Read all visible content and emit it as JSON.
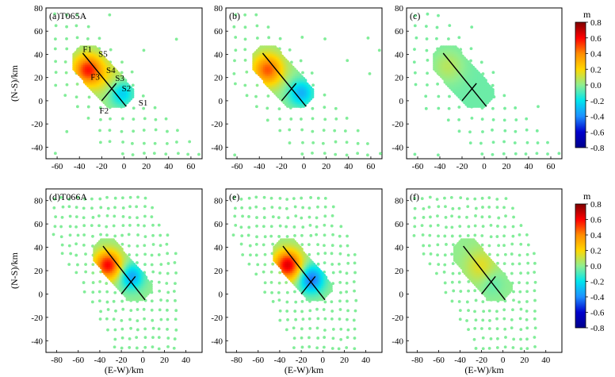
{
  "figure": {
    "ylabel": "(N-S)/km",
    "xlabel": "(E-W)/km",
    "colorbar_title": "m",
    "colorbar_ticks": [
      "0.8",
      "0.6",
      "0.4",
      "0.2",
      "0.0",
      "-0.2",
      "-0.4",
      "-0.6",
      "-0.8"
    ],
    "colorbar_stops": [
      "#7f0000",
      "#ff0000",
      "#ff8c00",
      "#ffd700",
      "#90ee90",
      "#00e5ee",
      "#1e90ff",
      "#0000cd",
      "#00008b"
    ]
  },
  "chart_data": [
    {
      "type": "scatter",
      "panel": "a",
      "label": "(a)T065A",
      "title": "",
      "xlabel": "",
      "ylabel": "(N-S)/km",
      "xlim": [
        -70,
        70
      ],
      "ylim": [
        -50,
        80
      ],
      "xticks": [
        -60,
        -40,
        -20,
        0,
        20,
        40,
        60
      ],
      "yticks": [
        -40,
        -20,
        0,
        20,
        40,
        60,
        80
      ],
      "annotations": [
        {
          "text": "F1",
          "x": -37,
          "y": 42
        },
        {
          "text": "S5",
          "x": -23,
          "y": 38
        },
        {
          "text": "S4",
          "x": -16,
          "y": 24
        },
        {
          "text": "F3",
          "x": -30,
          "y": 18
        },
        {
          "text": "S3",
          "x": -8,
          "y": 17
        },
        {
          "text": "S2",
          "x": -2,
          "y": 8
        },
        {
          "text": "F2",
          "x": -22,
          "y": -11
        },
        {
          "text": "S1",
          "x": 13,
          "y": -4
        }
      ]
    },
    {
      "type": "scatter",
      "panel": "b",
      "label": "(b)",
      "xlabel": "",
      "ylabel": "",
      "xlim": [
        -70,
        70
      ],
      "ylim": [
        -50,
        80
      ],
      "xticks": [
        -60,
        -40,
        -20,
        0,
        20,
        40,
        60
      ],
      "yticks": [
        -40,
        -20,
        0,
        20,
        40,
        60,
        80
      ]
    },
    {
      "type": "scatter",
      "panel": "c",
      "label": "(c)",
      "xlabel": "",
      "ylabel": "",
      "xlim": [
        -70,
        70
      ],
      "ylim": [
        -50,
        80
      ],
      "xticks": [
        -60,
        -40,
        -20,
        0,
        20,
        40,
        60
      ],
      "yticks": [
        -40,
        -20,
        0,
        20,
        40,
        60,
        80
      ]
    },
    {
      "type": "scatter",
      "panel": "d",
      "label": "(d)T066A",
      "xlabel": "(E-W)/km",
      "ylabel": "(N-S)/km",
      "xlim": [
        -90,
        55
      ],
      "ylim": [
        -50,
        90
      ],
      "xticks": [
        -80,
        -60,
        -40,
        -20,
        0,
        20,
        40
      ],
      "yticks": [
        -40,
        -20,
        0,
        20,
        40,
        60,
        80
      ]
    },
    {
      "type": "scatter",
      "panel": "e",
      "label": "(e)",
      "xlabel": "(E-W)/km",
      "ylabel": "",
      "xlim": [
        -90,
        55
      ],
      "ylim": [
        -50,
        90
      ],
      "xticks": [
        -80,
        -60,
        -40,
        -20,
        0,
        20,
        40
      ],
      "yticks": [
        -40,
        -20,
        0,
        20,
        40,
        60,
        80
      ]
    },
    {
      "type": "scatter",
      "panel": "f",
      "label": "(f)",
      "xlabel": "(E-W)/km",
      "ylabel": "",
      "xlim": [
        -90,
        55
      ],
      "ylim": [
        -50,
        90
      ],
      "xticks": [
        -80,
        -60,
        -40,
        -20,
        0,
        20,
        40
      ],
      "yticks": [
        -40,
        -20,
        0,
        20,
        40,
        60,
        80
      ]
    }
  ]
}
